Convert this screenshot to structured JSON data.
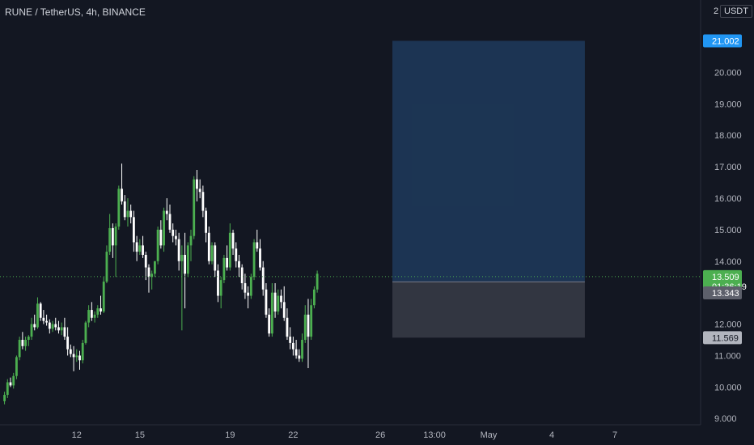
{
  "header": {
    "title": "RUNE / TetherUS, 4h, BINANCE",
    "currency_menu": "USDT",
    "scale_number": "2"
  },
  "colors": {
    "background": "#131722",
    "up": "#26a69a",
    "up_candle": "#4caf50",
    "down": "#ffffff",
    "target_zone": "#1e3a5c",
    "stop_zone": "#363a45",
    "target_tag": "#2196f3",
    "price_tag": "#4caf50",
    "entry_tag": "#5d606b",
    "stop_tag": "#b2b5be"
  },
  "chart_data": {
    "type": "candlestick",
    "symbol": "RUNE / TetherUS",
    "interval": "4h",
    "exchange": "BINANCE",
    "y_ticks": [
      "9.000",
      "10.000",
      "11.000",
      "12.000",
      "13.000",
      "14.000",
      "15.000",
      "16.000",
      "17.000",
      "18.000",
      "19.000",
      "20.000"
    ],
    "ylim": [
      8.8,
      22.3
    ],
    "x_ticks": [
      "12",
      "15",
      "19",
      "22",
      "26",
      "13:00",
      "May",
      "4",
      "7"
    ],
    "x_tick_bar_index": [
      25,
      46,
      76,
      97,
      126,
      144,
      162,
      183,
      204
    ],
    "x_bar_count": 233,
    "candles": [
      [
        9.55,
        9.85,
        9.45,
        9.75
      ],
      [
        9.75,
        10.25,
        9.65,
        10.15
      ],
      [
        10.15,
        10.3,
        10.0,
        10.05
      ],
      [
        10.05,
        10.45,
        9.95,
        10.35
      ],
      [
        10.35,
        11.0,
        10.25,
        10.95
      ],
      [
        10.95,
        11.6,
        10.85,
        11.5
      ],
      [
        11.5,
        11.75,
        11.2,
        11.3
      ],
      [
        11.3,
        11.6,
        11.15,
        11.5
      ],
      [
        11.5,
        11.65,
        11.3,
        11.6
      ],
      [
        11.6,
        12.2,
        11.5,
        12.0
      ],
      [
        12.0,
        12.3,
        11.8,
        11.9
      ],
      [
        11.9,
        12.85,
        11.85,
        12.65
      ],
      [
        12.65,
        12.7,
        12.1,
        12.2
      ],
      [
        12.2,
        12.45,
        12.0,
        12.1
      ],
      [
        12.1,
        12.3,
        11.95,
        12.05
      ],
      [
        12.05,
        12.15,
        11.7,
        11.85
      ],
      [
        11.85,
        12.1,
        11.75,
        12.0
      ],
      [
        12.0,
        12.2,
        11.8,
        11.9
      ],
      [
        11.9,
        12.1,
        11.7,
        11.8
      ],
      [
        11.8,
        12.05,
        11.65,
        11.9
      ],
      [
        11.9,
        12.2,
        11.5,
        11.6
      ],
      [
        11.6,
        11.9,
        11.0,
        11.2
      ],
      [
        11.2,
        11.35,
        10.95,
        11.05
      ],
      [
        11.05,
        11.3,
        10.5,
        10.95
      ],
      [
        10.95,
        11.2,
        10.8,
        11.0
      ],
      [
        11.0,
        11.15,
        10.55,
        10.85
      ],
      [
        10.85,
        11.5,
        10.75,
        11.4
      ],
      [
        11.4,
        12.1,
        11.35,
        12.05
      ],
      [
        12.05,
        12.6,
        11.9,
        12.45
      ],
      [
        12.45,
        12.7,
        12.1,
        12.2
      ],
      [
        12.2,
        12.4,
        12.05,
        12.3
      ],
      [
        12.3,
        12.6,
        12.2,
        12.5
      ],
      [
        12.5,
        12.9,
        12.3,
        12.4
      ],
      [
        12.4,
        13.5,
        12.35,
        13.35
      ],
      [
        13.35,
        14.5,
        13.3,
        14.3
      ],
      [
        14.3,
        15.5,
        14.2,
        15.05
      ],
      [
        15.05,
        15.2,
        14.1,
        14.5
      ],
      [
        14.5,
        15.2,
        13.5,
        15.1
      ],
      [
        15.1,
        16.4,
        15.0,
        16.3
      ],
      [
        16.3,
        17.1,
        15.8,
        15.9
      ],
      [
        15.9,
        16.1,
        15.3,
        15.4
      ],
      [
        15.4,
        16.0,
        15.1,
        15.6
      ],
      [
        15.6,
        15.8,
        15.2,
        15.4
      ],
      [
        15.4,
        15.6,
        14.3,
        14.6
      ],
      [
        14.6,
        14.8,
        14.0,
        14.3
      ],
      [
        14.3,
        14.7,
        14.2,
        14.5
      ],
      [
        14.5,
        14.8,
        14.1,
        14.2
      ],
      [
        14.2,
        14.3,
        13.4,
        13.8
      ],
      [
        13.8,
        13.9,
        13.0,
        13.5
      ],
      [
        13.5,
        13.7,
        13.1,
        13.6
      ],
      [
        13.6,
        14.0,
        13.5,
        14.0
      ],
      [
        14.0,
        15.1,
        13.9,
        15.0
      ],
      [
        15.0,
        15.3,
        14.4,
        14.5
      ],
      [
        14.5,
        15.7,
        14.3,
        15.6
      ],
      [
        15.6,
        16.0,
        15.3,
        15.5
      ],
      [
        15.5,
        15.8,
        14.9,
        15.0
      ],
      [
        15.0,
        15.2,
        14.6,
        14.8
      ],
      [
        14.8,
        15.0,
        14.5,
        14.7
      ],
      [
        14.7,
        14.9,
        13.7,
        14.0
      ],
      [
        14.0,
        14.5,
        11.8,
        14.2
      ],
      [
        14.2,
        14.9,
        12.5,
        13.6
      ],
      [
        13.6,
        14.6,
        13.5,
        14.5
      ],
      [
        14.5,
        15.0,
        14.0,
        14.8
      ],
      [
        14.8,
        16.7,
        14.7,
        16.6
      ],
      [
        16.6,
        16.9,
        15.9,
        16.3
      ],
      [
        16.3,
        16.6,
        16.0,
        16.2
      ],
      [
        16.2,
        16.4,
        15.4,
        15.6
      ],
      [
        15.6,
        15.7,
        14.6,
        14.9
      ],
      [
        14.9,
        15.1,
        13.9,
        14.0
      ],
      [
        14.0,
        14.6,
        13.9,
        14.5
      ],
      [
        14.5,
        14.6,
        13.5,
        13.7
      ],
      [
        13.7,
        13.9,
        12.7,
        12.9
      ],
      [
        12.9,
        13.5,
        12.5,
        13.4
      ],
      [
        13.4,
        14.2,
        13.3,
        14.1
      ],
      [
        14.1,
        14.5,
        13.7,
        13.8
      ],
      [
        13.8,
        15.2,
        13.7,
        14.9
      ],
      [
        14.9,
        15.0,
        14.2,
        14.4
      ],
      [
        14.4,
        14.6,
        13.8,
        14.0
      ],
      [
        14.0,
        14.2,
        13.5,
        13.8
      ],
      [
        13.8,
        13.9,
        13.1,
        13.3
      ],
      [
        13.3,
        13.6,
        12.8,
        13.0
      ],
      [
        13.0,
        13.2,
        12.5,
        12.9
      ],
      [
        12.9,
        13.6,
        12.8,
        13.5
      ],
      [
        13.5,
        14.7,
        13.4,
        14.6
      ],
      [
        14.6,
        15.0,
        14.3,
        14.4
      ],
      [
        14.4,
        14.7,
        13.7,
        13.8
      ],
      [
        13.8,
        14.0,
        12.9,
        13.1
      ],
      [
        13.1,
        13.3,
        12.2,
        12.3
      ],
      [
        12.3,
        12.5,
        11.6,
        11.7
      ],
      [
        11.7,
        13.3,
        11.6,
        13.0
      ],
      [
        13.0,
        13.3,
        12.2,
        12.4
      ],
      [
        12.4,
        13.1,
        12.3,
        12.9
      ],
      [
        12.9,
        13.1,
        12.5,
        12.7
      ],
      [
        12.7,
        13.2,
        12.1,
        12.2
      ],
      [
        12.2,
        12.5,
        11.5,
        11.6
      ],
      [
        11.6,
        11.9,
        11.2,
        11.4
      ],
      [
        11.4,
        11.6,
        11.0,
        11.2
      ],
      [
        11.2,
        11.5,
        10.9,
        11.0
      ],
      [
        11.0,
        11.2,
        10.8,
        10.9
      ],
      [
        10.9,
        11.7,
        10.8,
        11.5
      ],
      [
        11.5,
        12.6,
        11.4,
        12.3
      ],
      [
        12.3,
        12.8,
        10.6,
        11.6
      ],
      [
        11.6,
        12.8,
        11.5,
        12.6
      ],
      [
        12.6,
        13.2,
        12.5,
        13.1
      ],
      [
        13.1,
        13.7,
        13.0,
        13.6
      ]
    ],
    "target_price": 21.002,
    "entry_price": 13.343,
    "stop_price": 11.569,
    "last_price": 13.509,
    "countdown": "01:36:19",
    "price_tags": {
      "target": "21.002",
      "last": "13.509",
      "countdown": "01:36:19",
      "entry": "13.343",
      "stop": "11.569"
    },
    "position_tool": {
      "start_bar_index": 130,
      "end_bar_index": 194
    }
  }
}
